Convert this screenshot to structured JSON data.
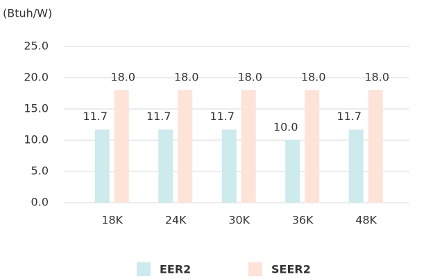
{
  "chart_data": {
    "type": "bar",
    "y_label": "(Btuh/W)",
    "categories": [
      "18K",
      "24K",
      "30K",
      "36K",
      "48K"
    ],
    "series": [
      {
        "name": "EER2",
        "color": "#cdeaec",
        "values": [
          11.7,
          11.7,
          11.7,
          10.0,
          11.7
        ],
        "value_labels": [
          "11.7",
          "11.7",
          "11.7",
          "10.0",
          "11.7"
        ]
      },
      {
        "name": "SEER2",
        "color": "#fde3d8",
        "values": [
          18.0,
          18.0,
          18.0,
          18.0,
          18.0
        ],
        "value_labels": [
          "18.0",
          "18.0",
          "18.0",
          "18.0",
          "18.0"
        ]
      }
    ],
    "ylim": [
      0,
      25
    ],
    "yticks": [
      {
        "value": 0,
        "label": "0.0"
      },
      {
        "value": 5,
        "label": "5.0"
      },
      {
        "value": 10,
        "label": "10.0"
      },
      {
        "value": 15,
        "label": "15.0"
      },
      {
        "value": 20,
        "label": "20.0"
      },
      {
        "value": 25,
        "label": "25.0"
      }
    ],
    "grid": true,
    "legend": "bottom"
  }
}
